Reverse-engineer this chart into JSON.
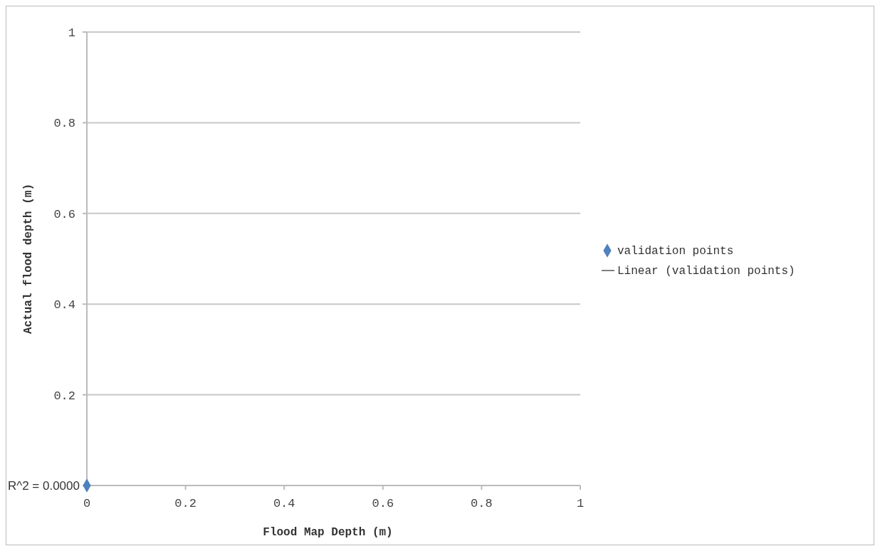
{
  "chart_data": {
    "type": "scatter",
    "xlabel": "Flood Map Depth (m)",
    "ylabel": "Actual flood depth (m)",
    "series": [
      {
        "name": "validation points",
        "color": "#4f81bd",
        "x": [
          0
        ],
        "values": [
          0
        ],
        "marker": "diamond"
      },
      {
        "name": "Linear (validation points)",
        "type": "line",
        "color": "#7f7f7f"
      }
    ],
    "xlim": [
      0,
      1
    ],
    "xticks": [
      0,
      0.2,
      0.4,
      0.6,
      0.8,
      1
    ],
    "ylim": [
      0,
      1
    ],
    "yticks": [
      {
        "value": 0,
        "label": null
      },
      0.2,
      0.4,
      0.6,
      0.8,
      1
    ],
    "grid": "y",
    "legend": "right",
    "annotations": [
      "R^2 = 0.0000"
    ]
  }
}
